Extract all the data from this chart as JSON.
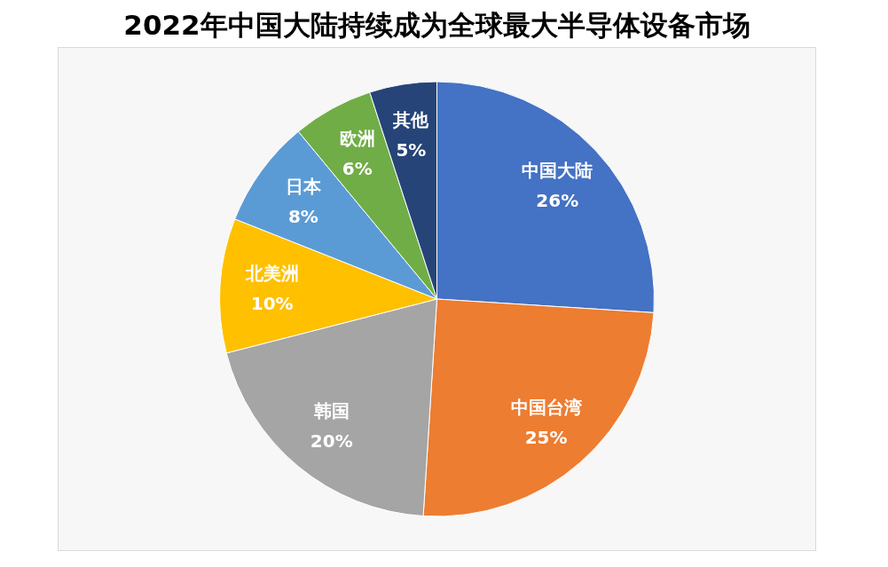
{
  "chart_data": {
    "type": "pie",
    "title": "2022年中国大陆持续成为全球最大半导体设备市场",
    "categories": [
      "中国大陆",
      "中国台湾",
      "韩国",
      "北美洲",
      "日本",
      "欧洲",
      "其他"
    ],
    "values": [
      26,
      25,
      20,
      10,
      8,
      6,
      5
    ],
    "colors": [
      "#4472c4",
      "#ed7d31",
      "#a5a5a5",
      "#ffc000",
      "#5b9bd5",
      "#70ad47",
      "#264478"
    ],
    "value_labels": [
      "26%",
      "25%",
      "20%",
      "10%",
      "8%",
      "6%",
      "5%"
    ],
    "legend": false
  }
}
